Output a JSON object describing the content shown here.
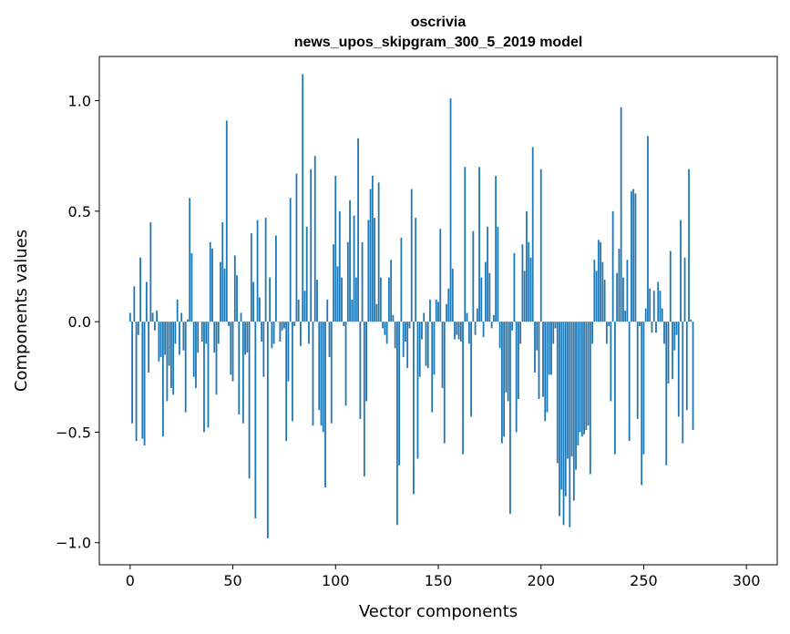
{
  "chart_data": {
    "type": "bar",
    "title": "oscrivia",
    "subtitle": "news_upos_skipgram_300_5_2019 model",
    "xlabel": "Vector components",
    "ylabel": "Components values",
    "xlim": [
      -15,
      315
    ],
    "ylim": [
      -1.1,
      1.2
    ],
    "xticks": [
      0,
      50,
      100,
      150,
      200,
      250,
      300
    ],
    "xtick_labels": [
      "0",
      "50",
      "100",
      "150",
      "200",
      "250",
      "300"
    ],
    "yticks": [
      -1.0,
      -0.5,
      0.0,
      0.5,
      1.0
    ],
    "ytick_labels": [
      "−1.0",
      "−0.5",
      "0.0",
      "0.5",
      "1.0"
    ],
    "grid": false,
    "bar_color": "#1f77b4",
    "values": [
      0.04,
      -0.46,
      0.16,
      -0.54,
      -0.06,
      0.29,
      -0.53,
      -0.56,
      0.18,
      -0.23,
      0.45,
      0.04,
      -0.04,
      0.05,
      -0.18,
      -0.16,
      -0.52,
      -0.15,
      -0.36,
      -0.2,
      -0.3,
      -0.33,
      -0.1,
      0.1,
      -0.15,
      0.04,
      -0.13,
      -0.41,
      0.01,
      0.56,
      0.31,
      -0.25,
      -0.3,
      -0.14,
      0.0,
      -0.09,
      -0.5,
      -0.1,
      -0.48,
      0.36,
      0.33,
      -0.14,
      -0.33,
      -0.1,
      0.27,
      0.45,
      0.24,
      0.91,
      -0.02,
      -0.24,
      -0.27,
      0.3,
      0.21,
      -0.42,
      0.04,
      -0.46,
      -0.15,
      -0.14,
      -0.71,
      0.4,
      0.18,
      -0.89,
      0.46,
      0.11,
      -0.09,
      -0.25,
      0.47,
      -0.98,
      0.2,
      -0.12,
      -0.1,
      0.39,
      0.0,
      -0.09,
      -0.04,
      -0.03,
      -0.54,
      -0.27,
      0.56,
      -0.45,
      -0.02,
      0.67,
      0.1,
      -0.11,
      1.12,
      0.14,
      0.43,
      -0.1,
      0.69,
      -0.47,
      0.75,
      0.19,
      -0.4,
      -0.47,
      -0.5,
      -0.75,
      0.1,
      -0.16,
      -0.46,
      0.35,
      0.66,
      0.25,
      0.5,
      0.2,
      -0.02,
      -0.38,
      0.36,
      0.55,
      0.1,
      0.48,
      0.2,
      0.83,
      -0.44,
      0.36,
      -0.7,
      -0.36,
      0.46,
      0.6,
      0.66,
      0.47,
      0.08,
      0.63,
      0.2,
      -0.03,
      -0.06,
      -0.1,
      0.2,
      0.28,
      0.03,
      -0.12,
      -0.92,
      -0.65,
      0.38,
      -0.16,
      -0.09,
      -0.21,
      -0.03,
      0.6,
      -0.78,
      0.47,
      -0.62,
      -0.25,
      -0.08,
      0.04,
      -0.2,
      -0.21,
      0.1,
      -0.41,
      -0.24,
      0.1,
      0.09,
      0.42,
      -0.3,
      -0.55,
      0.08,
      0.15,
      1.01,
      0.24,
      -0.08,
      -0.06,
      -0.08,
      -0.09,
      -0.6,
      0.7,
      0.04,
      -0.1,
      -0.43,
      0.41,
      -0.06,
      0.06,
      0.7,
      0.2,
      -0.07,
      0.27,
      0.43,
      0.22,
      -0.03,
      0.03,
      0.66,
      0.43,
      -0.12,
      -0.55,
      -0.52,
      -0.32,
      -0.36,
      -0.87,
      -0.04,
      0.31,
      -0.5,
      -0.35,
      -0.1,
      0.35,
      0.23,
      0.5,
      0.36,
      0.29,
      0.79,
      -0.23,
      -0.13,
      -0.35,
      0.69,
      -0.34,
      -0.45,
      -0.41,
      -0.24,
      -0.24,
      -0.1,
      -0.03,
      -0.64,
      -0.88,
      -0.76,
      -0.92,
      -0.79,
      -0.62,
      -0.93,
      -0.61,
      -0.81,
      -0.67,
      -0.56,
      -0.5,
      -0.52,
      -0.51,
      -0.49,
      -0.47,
      -0.69,
      -0.1,
      0.28,
      0.23,
      0.37,
      0.36,
      0.27,
      0.19,
      -0.1,
      -0.02,
      -0.36,
      0.5,
      -0.6,
      0.22,
      0.33,
      0.97,
      0.2,
      0.05,
      0.28,
      -0.54,
      0.59,
      0.6,
      0.58,
      -0.44,
      -0.02,
      -0.74,
      -0.6,
      0.06,
      0.84,
      0.15,
      -0.05,
      0.14,
      -0.05,
      0.18,
      0.14,
      0.06,
      -0.1,
      -0.65,
      -0.28,
      0.32,
      -0.26,
      -0.13,
      -0.06,
      -0.43,
      0.46,
      -0.55,
      0.29,
      -0.4,
      0.69,
      0.01,
      -0.49
    ]
  }
}
